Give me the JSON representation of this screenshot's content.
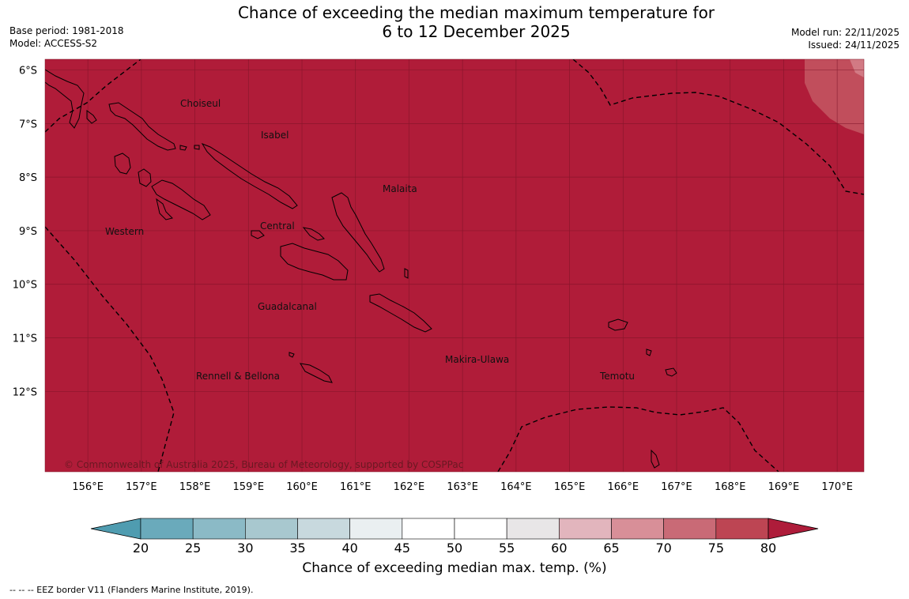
{
  "title": {
    "line1": "Chance of exceeding the median maximum temperature for",
    "line2": "6 to 12 December 2025"
  },
  "meta_left": {
    "base_period": "Base period: 1981-2018",
    "model": "Model: ACCESS-S2"
  },
  "meta_right": {
    "model_run": "Model run: 22/11/2025",
    "issued": "Issued: 24/11/2025"
  },
  "map": {
    "fill_color": "#b01c39",
    "light_patch_color": "#c14e5c",
    "lighter_patch_color": "#d27a84",
    "lat_labels": [
      "6°S",
      "7°S",
      "8°S",
      "9°S",
      "10°S",
      "11°S",
      "12°S"
    ],
    "lon_labels": [
      "156°E",
      "157°E",
      "158°E",
      "159°E",
      "160°E",
      "161°E",
      "162°E",
      "163°E",
      "164°E",
      "165°E",
      "166°E",
      "167°E",
      "168°E",
      "169°E",
      "170°E"
    ],
    "region_labels": [
      "Choiseul",
      "Isabel",
      "Malaita",
      "Western",
      "Central",
      "Guadalcanal",
      "Makira-Ulawa",
      "Rennell & Bellona",
      "Temotu"
    ],
    "copyright": "© Commonwealth of Australia 2025, Bureau of Meteorology, supported by COSPPac"
  },
  "colorbar": {
    "ticks": [
      "20",
      "25",
      "30",
      "35",
      "40",
      "45",
      "50",
      "55",
      "60",
      "65",
      "70",
      "75",
      "80"
    ],
    "colors": [
      "#4f9cb0",
      "#6aaabb",
      "#8bbac6",
      "#a8c8cf",
      "#c8d9de",
      "#eaeff1",
      "#ffffff",
      "#ffffff",
      "#e8e6e7",
      "#e2b5bd",
      "#d88f98",
      "#c96a76",
      "#bd4553",
      "#ae1c3a"
    ],
    "label": "Chance of exceeding median max. temp. (%)"
  },
  "footnote": "--  --  -- EEZ border V11 (Flanders Marine Institute, 2019)."
}
